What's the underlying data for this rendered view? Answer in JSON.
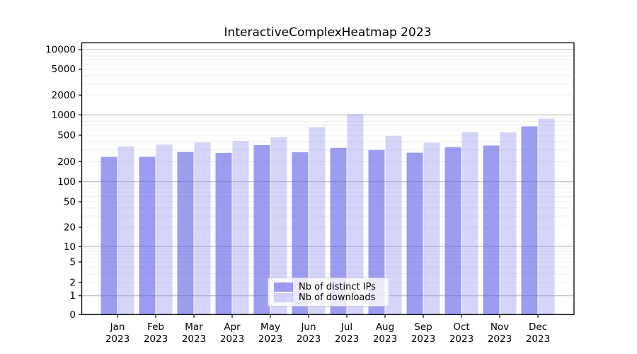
{
  "title": "InteractiveComplexHeatmap 2023",
  "chart_data": {
    "type": "bar",
    "title": "InteractiveComplexHeatmap 2023",
    "categories": [
      "Jan",
      "Feb",
      "Mar",
      "Apr",
      "May",
      "Jun",
      "Jul",
      "Aug",
      "Sep",
      "Oct",
      "Nov",
      "Dec"
    ],
    "year_label": "2023",
    "series": [
      {
        "name": "Nb of distinct IPs",
        "color": "rgba(96,96,232,0.62)",
        "values": [
          236,
          237,
          280,
          271,
          355,
          277,
          323,
          300,
          273,
          330,
          350,
          675
        ]
      },
      {
        "name": "Nb of downloads",
        "color": "rgba(150,150,240,0.40)",
        "values": [
          341,
          362,
          390,
          410,
          465,
          660,
          1025,
          489,
          386,
          560,
          552,
          880
        ]
      }
    ],
    "y_axis": {
      "scale": "symlog",
      "ticks": [
        {
          "value": 10000,
          "label": "10000"
        },
        {
          "value": 5000,
          "label": "5000"
        },
        {
          "value": 2000,
          "label": "2000"
        },
        {
          "value": 1000,
          "label": "1000"
        },
        {
          "value": 500,
          "label": "500"
        },
        {
          "value": 200,
          "label": "200"
        },
        {
          "value": 100,
          "label": "100"
        },
        {
          "value": 50,
          "label": "50"
        },
        {
          "value": 20,
          "label": "20"
        },
        {
          "value": 10,
          "label": "10"
        },
        {
          "value": 5,
          "label": "5"
        },
        {
          "value": 2,
          "label": "2"
        },
        {
          "value": 1,
          "label": "1"
        },
        {
          "value": 0,
          "label": "0"
        }
      ]
    },
    "grid": {
      "major_color": "#b3b3b3",
      "minor_color": "#ebebeb"
    },
    "spine_color": "#000000",
    "legend": {
      "position": "bottom-center-inside"
    }
  }
}
